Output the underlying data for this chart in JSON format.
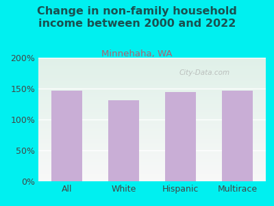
{
  "title": "Change in non-family household\nincome between 2000 and 2022",
  "subtitle": "Minnehaha, WA",
  "categories": [
    "All",
    "White",
    "Hispanic",
    "Multirace"
  ],
  "values": [
    147,
    131,
    144,
    147
  ],
  "bar_color": "#c9aed6",
  "ylim": [
    0,
    200
  ],
  "yticks": [
    0,
    50,
    100,
    150,
    200
  ],
  "ytick_labels": [
    "0%",
    "50%",
    "100%",
    "150%",
    "200%"
  ],
  "bg_outer": "#00f0f0",
  "bg_plot_top": "#dff0e8",
  "bg_plot_bottom": "#f8f8f8",
  "title_color": "#1a5050",
  "subtitle_color": "#b06070",
  "tick_label_color": "#444444",
  "title_fontsize": 11.5,
  "subtitle_fontsize": 9.5,
  "axis_label_fontsize": 9,
  "watermark": "City-Data.com"
}
